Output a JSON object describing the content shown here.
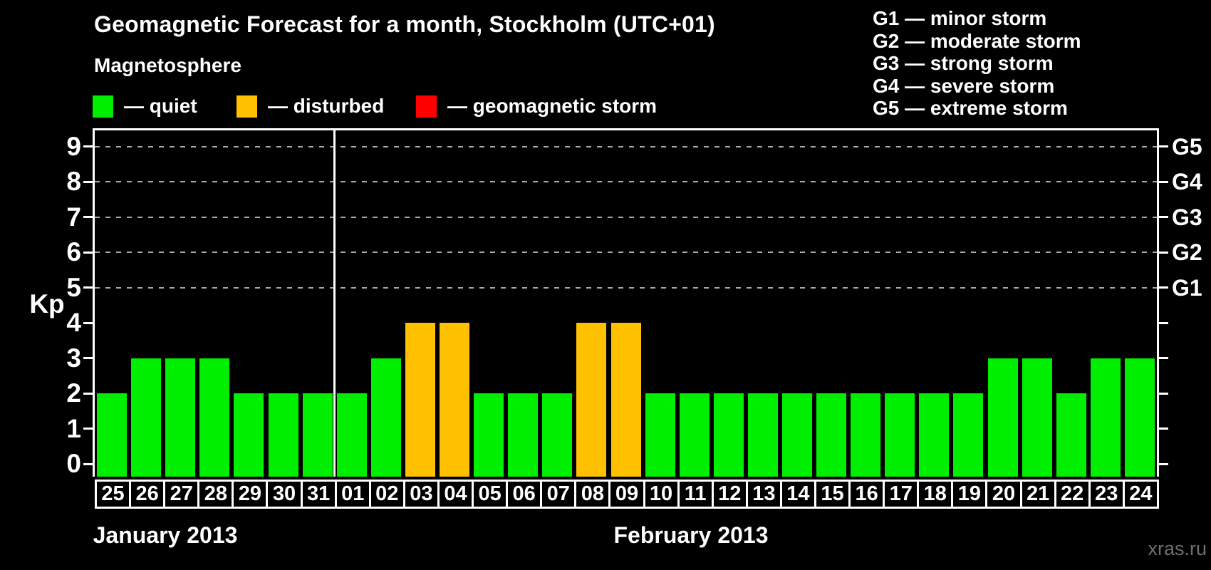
{
  "title": "Geomagnetic Forecast for a month, Stockholm (UTC+01)",
  "watermark": "xras.ru",
  "magnetosphere_legend": {
    "heading": "Magnetosphere",
    "items": [
      {
        "name": "quiet",
        "label": "— quiet",
        "color": "#00ef00"
      },
      {
        "name": "disturbed",
        "label": "— disturbed",
        "color": "#ffc000"
      },
      {
        "name": "geomagnetic-storm",
        "label": "— geomagnetic storm",
        "color": "#ff0000"
      }
    ]
  },
  "storm_scale_legend": [
    "G1 — minor storm",
    "G2 — moderate storm",
    "G3 — strong storm",
    "G4 — severe storm",
    "G5 — extreme storm"
  ],
  "chart_data": {
    "type": "bar",
    "y_axis_label": "Kp",
    "ylim": [
      0,
      9
    ],
    "y_ticks": [
      0,
      1,
      2,
      3,
      4,
      5,
      6,
      7,
      8,
      9
    ],
    "dashed_gridlines_at": [
      5,
      6,
      7,
      8,
      9
    ],
    "right_axis_labels": [
      {
        "value": 5,
        "label": "G1"
      },
      {
        "value": 6,
        "label": "G2"
      },
      {
        "value": 7,
        "label": "G3"
      },
      {
        "value": 8,
        "label": "G4"
      },
      {
        "value": 9,
        "label": "G5"
      }
    ],
    "categories": [
      "25",
      "26",
      "27",
      "28",
      "29",
      "30",
      "31",
      "01",
      "02",
      "03",
      "04",
      "05",
      "06",
      "07",
      "08",
      "09",
      "10",
      "11",
      "12",
      "13",
      "14",
      "15",
      "16",
      "17",
      "18",
      "19",
      "20",
      "21",
      "22",
      "23",
      "24"
    ],
    "values": [
      2,
      3,
      3,
      3,
      2,
      2,
      2,
      2,
      3,
      4,
      4,
      2,
      2,
      2,
      4,
      4,
      2,
      2,
      2,
      2,
      2,
      2,
      2,
      2,
      2,
      2,
      3,
      3,
      2,
      3,
      3
    ],
    "statuses": [
      "quiet",
      "quiet",
      "quiet",
      "quiet",
      "quiet",
      "quiet",
      "quiet",
      "quiet",
      "quiet",
      "disturbed",
      "disturbed",
      "quiet",
      "quiet",
      "quiet",
      "disturbed",
      "disturbed",
      "quiet",
      "quiet",
      "quiet",
      "quiet",
      "quiet",
      "quiet",
      "quiet",
      "quiet",
      "quiet",
      "quiet",
      "quiet",
      "quiet",
      "quiet",
      "quiet",
      "quiet"
    ],
    "colors": {
      "quiet": "#00ef00",
      "disturbed": "#ffc000",
      "geomagnetic-storm": "#ff0000"
    },
    "month_groups": [
      {
        "label": "January 2013",
        "days": 7
      },
      {
        "label": "February 2013",
        "days": 24
      }
    ],
    "grid": true,
    "legend_position": "top"
  }
}
